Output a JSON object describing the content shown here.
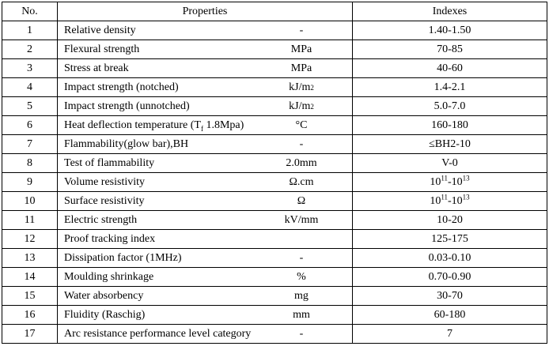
{
  "table": {
    "header": [
      "No.",
      "Properties",
      "Indexes"
    ],
    "rows": [
      {
        "no": "1",
        "property": [
          {
            "text": "Relative density"
          }
        ],
        "unit": [
          {
            "text": "-"
          }
        ],
        "index": [
          {
            "text": "1.40-1.50"
          }
        ]
      },
      {
        "no": "2",
        "property": [
          {
            "text": "Flexural strength"
          }
        ],
        "unit": [
          {
            "text": "MPa"
          }
        ],
        "index": [
          {
            "text": "70-85"
          }
        ]
      },
      {
        "no": "3",
        "property": [
          {
            "text": "Stress at break"
          }
        ],
        "unit": [
          {
            "text": "MPa"
          }
        ],
        "index": [
          {
            "text": "40-60"
          }
        ]
      },
      {
        "no": "4",
        "property": [
          {
            "text": "Impact strength (notched)"
          }
        ],
        "unit": [
          {
            "text": "kJ/m"
          },
          {
            "text": "2",
            "style": "sup"
          }
        ],
        "index": [
          {
            "text": "1.4-2.1"
          }
        ]
      },
      {
        "no": "5",
        "property": [
          {
            "text": "Impact strength (unnotched)"
          }
        ],
        "unit": [
          {
            "text": "kJ/m"
          },
          {
            "text": "2",
            "style": "sup"
          }
        ],
        "index": [
          {
            "text": "5.0-7.0"
          }
        ]
      },
      {
        "no": "6",
        "property": [
          {
            "text": "Heat deflection temperature (T"
          },
          {
            "text": "f",
            "style": "sub"
          },
          {
            "text": " 1.8Mpa)"
          }
        ],
        "unit": [
          {
            "text": "°C"
          }
        ],
        "index": [
          {
            "text": "160-180"
          }
        ]
      },
      {
        "no": "7",
        "property": [
          {
            "text": "Flammability(glow bar),BH"
          }
        ],
        "unit": [
          {
            "text": "-"
          }
        ],
        "index": [
          {
            "text": "≤BH2-10"
          }
        ]
      },
      {
        "no": "8",
        "property": [
          {
            "text": "Test of flammability"
          }
        ],
        "unit": [
          {
            "text": "2.0mm"
          }
        ],
        "index": [
          {
            "text": "V-0"
          }
        ]
      },
      {
        "no": "9",
        "property": [
          {
            "text": "Volume resistivity"
          }
        ],
        "unit": [
          {
            "text": "Ω.cm"
          }
        ],
        "index": [
          {
            "text": "10"
          },
          {
            "text": "11",
            "style": "sup"
          },
          {
            "text": "-10"
          },
          {
            "text": "13",
            "style": "sup"
          }
        ]
      },
      {
        "no": "10",
        "property": [
          {
            "text": "Surface resistivity"
          }
        ],
        "unit": [
          {
            "text": "Ω"
          }
        ],
        "index": [
          {
            "text": "10"
          },
          {
            "text": "11",
            "style": "sup"
          },
          {
            "text": "-10"
          },
          {
            "text": "13",
            "style": "sup"
          }
        ]
      },
      {
        "no": "11",
        "property": [
          {
            "text": "Electric strength"
          }
        ],
        "unit": [
          {
            "text": "kV/mm"
          }
        ],
        "index": [
          {
            "text": "10-20"
          }
        ]
      },
      {
        "no": "12",
        "property": [
          {
            "text": "Proof tracking index"
          }
        ],
        "unit": [],
        "index": [
          {
            "text": "125-175"
          }
        ]
      },
      {
        "no": "13",
        "property": [
          {
            "text": "Dissipation factor (1MHz)"
          }
        ],
        "unit": [
          {
            "text": "-"
          }
        ],
        "index": [
          {
            "text": "0.03-0.10"
          }
        ]
      },
      {
        "no": "14",
        "property": [
          {
            "text": "Moulding shrinkage"
          }
        ],
        "unit": [
          {
            "text": "%"
          }
        ],
        "index": [
          {
            "text": "0.70-0.90"
          }
        ]
      },
      {
        "no": "15",
        "property": [
          {
            "text": "Water absorbency"
          }
        ],
        "unit": [
          {
            "text": "mg"
          }
        ],
        "index": [
          {
            "text": "30-70"
          }
        ]
      },
      {
        "no": "16",
        "property": [
          {
            "text": "Fluidity (Raschig)"
          }
        ],
        "unit": [
          {
            "text": "mm"
          }
        ],
        "index": [
          {
            "text": "60-180"
          }
        ]
      },
      {
        "no": "17",
        "property": [
          {
            "text": "Arc resistance performance level category"
          }
        ],
        "unit": [
          {
            "text": "-"
          }
        ],
        "index": [
          {
            "text": "7"
          }
        ]
      }
    ]
  }
}
